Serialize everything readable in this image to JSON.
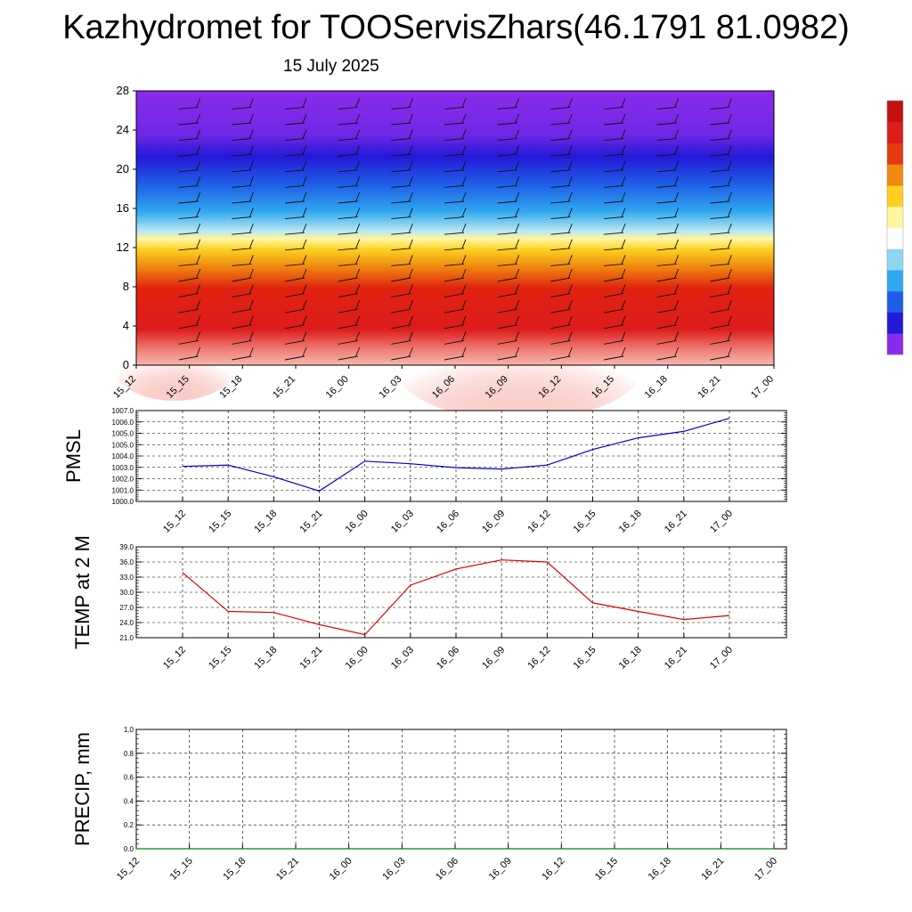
{
  "title": "Kazhydromet for TOOServisZhars(46.1791 81.0982)",
  "subtitle": "15 July 2025",
  "chart_data": [
    {
      "type": "heatmap",
      "name": "vertical-cross-section",
      "x": [
        "15_12",
        "15_15",
        "15_18",
        "15_21",
        "16_00",
        "16_03",
        "16_06",
        "16_09",
        "16_12",
        "16_15",
        "16_18",
        "16_21",
        "17_00"
      ],
      "yticks": [
        0,
        4,
        8,
        12,
        16,
        20,
        24,
        28
      ],
      "ylim": [
        0,
        28
      ],
      "colors": [
        "#f4b0a8",
        "#ee7a70",
        "#dd1c1c",
        "#e33a10",
        "#f08a10",
        "#fccf20",
        "#fff7a0",
        "#8fd6f0",
        "#30a8f0",
        "#1e5ee6",
        "#2419d8",
        "#8a2bea"
      ]
    },
    {
      "type": "line",
      "name": "pmsl",
      "x": [
        "15_12",
        "15_15",
        "15_18",
        "15_21",
        "16_00",
        "16_03",
        "16_06",
        "16_09",
        "16_12",
        "16_15",
        "16_18",
        "16_21",
        "17_00"
      ],
      "ylabel": "PMSL",
      "ylim": [
        1000.0,
        1007.0
      ],
      "yticks": [
        "1000.0",
        "1001.0",
        "1002.0",
        "1003.0",
        "1004.0",
        "1005.0",
        "1005.0",
        "1006.0",
        "1007.0"
      ],
      "series": [
        {
          "values": [
            1002.7,
            1002.8,
            1001.9,
            1000.8,
            1003.1,
            1002.9,
            1002.6,
            1002.5,
            1002.8,
            1004.0,
            1004.9,
            1005.4,
            1006.4
          ],
          "color": "#0000cc"
        }
      ]
    },
    {
      "type": "line",
      "name": "temp",
      "x": [
        "15_12",
        "15_15",
        "15_18",
        "15_21",
        "16_00",
        "16_03",
        "16_06",
        "16_09",
        "16_12",
        "16_15",
        "16_18",
        "16_21",
        "17_00"
      ],
      "ylabel": "TEMP at 2 M",
      "ylim": [
        21.0,
        39.0
      ],
      "yticks": [
        "21.0",
        "24.0",
        "27.0",
        "30.0",
        "33.0",
        "36.0",
        "39.0"
      ],
      "series": [
        {
          "values": [
            33.9,
            26.2,
            26.0,
            23.6,
            21.6,
            31.4,
            34.6,
            36.4,
            36.0,
            27.9,
            26.2,
            24.6,
            25.4
          ],
          "color": "#dd0000"
        }
      ]
    },
    {
      "type": "line",
      "name": "precip",
      "x": [
        "15_12",
        "15_15",
        "15_18",
        "15_21",
        "16_00",
        "16_03",
        "16_06",
        "16_09",
        "16_12",
        "16_15",
        "16_18",
        "16_21",
        "17_00"
      ],
      "ylabel": "PRECIP, mm",
      "ylim": [
        0.0,
        1.0
      ],
      "yticks": [
        "0.0",
        "0.2",
        "0.4",
        "0.6",
        "0.8",
        "1.0"
      ],
      "series": [
        {
          "values": [
            0,
            0,
            0,
            0,
            0,
            0,
            0,
            0,
            0,
            0,
            0,
            0,
            0
          ],
          "color": "#008800"
        }
      ]
    }
  ],
  "colorbar": {
    "colors": [
      "#8a2bea",
      "#2419d8",
      "#1e5ee6",
      "#30a8f0",
      "#8fd6f0",
      "#ffffff",
      "#fff7a0",
      "#fccf20",
      "#f08a10",
      "#e33a10",
      "#dd1c1c",
      "#c41010"
    ]
  }
}
